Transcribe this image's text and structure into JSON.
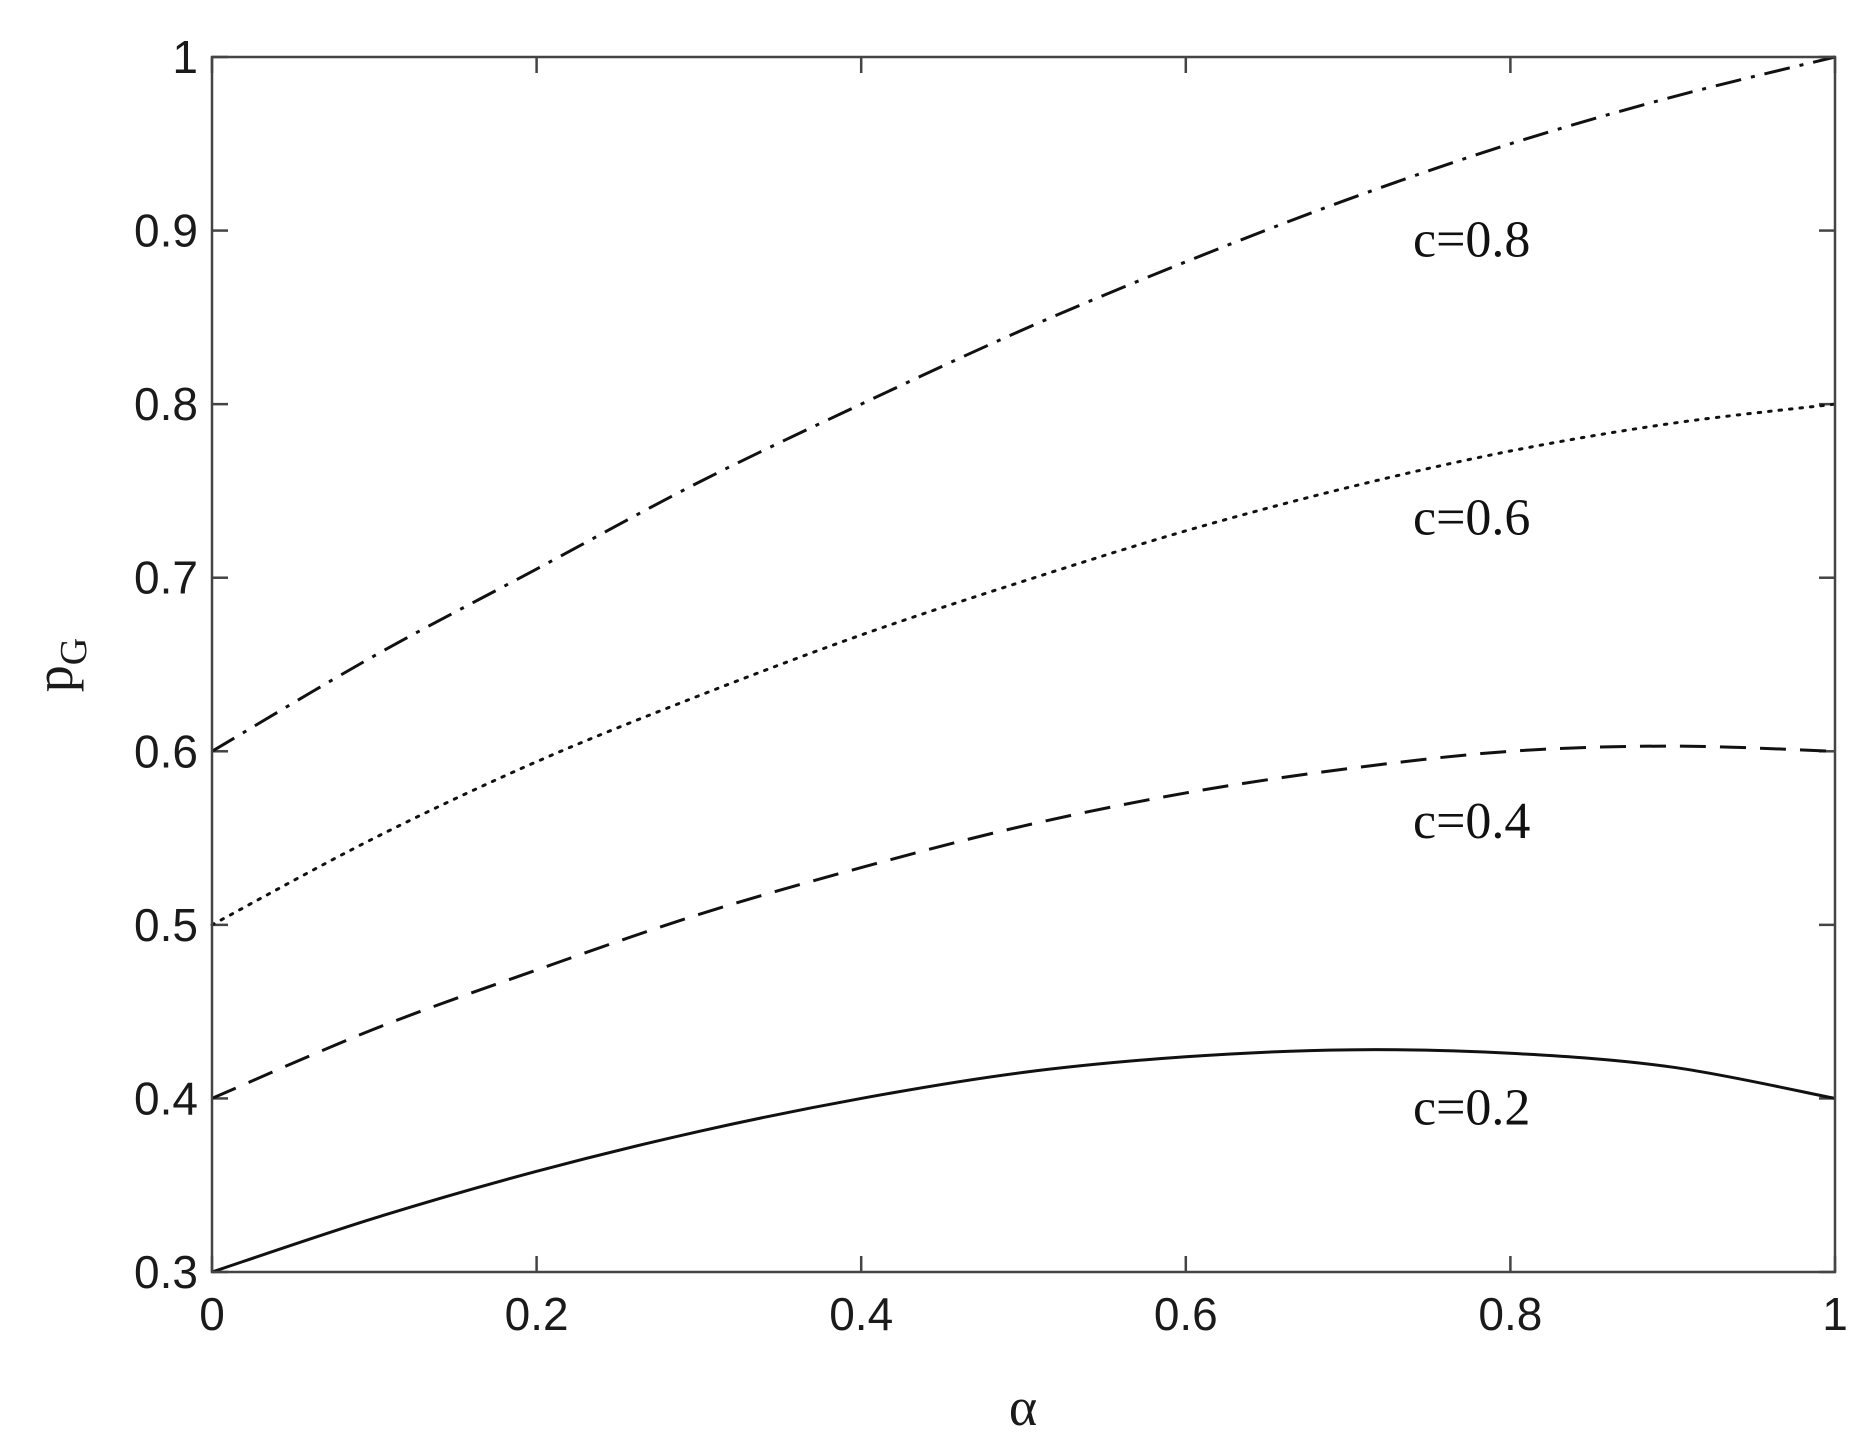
{
  "chart_data": {
    "type": "line",
    "title": "",
    "xlabel": "α",
    "ylabel_main": "p",
    "ylabel_sub": "G",
    "xlim": [
      0,
      1
    ],
    "ylim": [
      0.3,
      1
    ],
    "xticks": [
      0,
      0.2,
      0.4,
      0.6,
      0.8,
      1
    ],
    "xtick_labels": [
      "0",
      "0.2",
      "0.4",
      "0.6",
      "0.8",
      "1"
    ],
    "yticks": [
      0.3,
      0.4,
      0.5,
      0.6,
      0.7,
      0.8,
      0.9,
      1
    ],
    "ytick_labels": [
      "0.3",
      "0.4",
      "0.5",
      "0.6",
      "0.7",
      "0.8",
      "0.9",
      "1"
    ],
    "grid": false,
    "x": [
      0,
      0.1,
      0.2,
      0.3,
      0.4,
      0.5,
      0.6,
      0.7,
      0.8,
      0.9,
      1
    ],
    "series": [
      {
        "label": "c=0.8",
        "line_style": "dash-dot",
        "label_at": [
          0.74,
          0.885
        ],
        "values": [
          0.6,
          0.655,
          0.705,
          0.755,
          0.8,
          0.843,
          0.882,
          0.918,
          0.95,
          0.977,
          1.0
        ]
      },
      {
        "label": "c=0.6",
        "line_style": "dotted",
        "label_at": [
          0.74,
          0.725
        ],
        "values": [
          0.5,
          0.55,
          0.594,
          0.632,
          0.667,
          0.698,
          0.727,
          0.752,
          0.773,
          0.789,
          0.8
        ]
      },
      {
        "label": "c=0.4",
        "line_style": "dashed",
        "label_at": [
          0.74,
          0.55
        ],
        "values": [
          0.4,
          0.44,
          0.474,
          0.506,
          0.533,
          0.557,
          0.576,
          0.59,
          0.6,
          0.603,
          0.6
        ]
      },
      {
        "label": "c=0.2",
        "line_style": "solid",
        "label_at": [
          0.74,
          0.385
        ],
        "values": [
          0.3,
          0.331,
          0.358,
          0.381,
          0.4,
          0.415,
          0.424,
          0.428,
          0.426,
          0.418,
          0.4
        ]
      }
    ]
  }
}
